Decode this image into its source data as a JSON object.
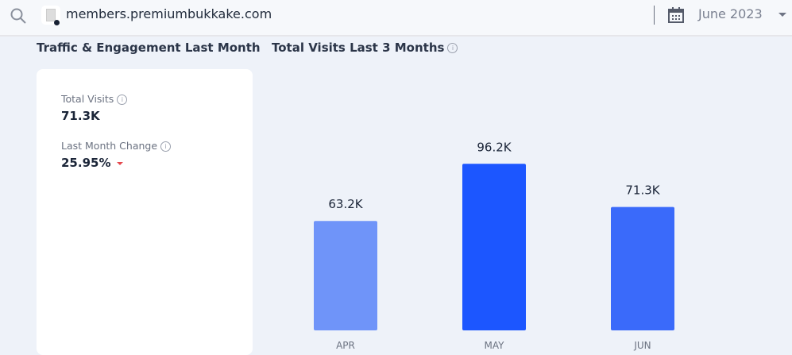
{
  "topbar": {
    "domain": "members.premiumbukkake.com",
    "date": "June 2023",
    "icons": [
      "search-icon",
      "favicon-icon",
      "calendar-icon",
      "chevron-down-icon"
    ]
  },
  "left": {
    "title": "Traffic & Engagement Last Month",
    "metrics": [
      {
        "label": "Total Visits",
        "value": "71.3K"
      },
      {
        "label": "Last Month Change",
        "value": "25.95%",
        "trend": "down",
        "trend_color": "#e5484d"
      }
    ]
  },
  "right": {
    "title": "Total Visits Last 3 Months"
  },
  "chart_data": {
    "type": "bar",
    "categories": [
      "APR",
      "MAY",
      "JUN"
    ],
    "values": [
      63.2,
      96.2,
      71.3
    ],
    "labels": [
      "63.2K",
      "96.2K",
      "71.3K"
    ],
    "colors": [
      "#6f94f9",
      "#1c56ff",
      "#3a6afa"
    ],
    "unit": "K",
    "ylim": [
      0,
      100
    ],
    "grid": false
  }
}
